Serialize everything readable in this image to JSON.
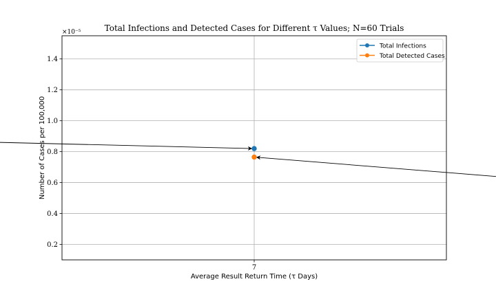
{
  "chart_data": {
    "type": "scatter",
    "title": "Total Infections and Detected Cases for Different τ Values; N=60 Trials",
    "xlabel": "Average Result Return Time (τ Days)",
    "ylabel": "Number of Cases per 100,000",
    "y_exponent_label": "×10⁻⁵",
    "x_categories": [
      "7"
    ],
    "x_ticks": [
      {
        "value": 7,
        "label": "7"
      }
    ],
    "y_ticks": [
      {
        "value": 0.2,
        "label": "0.2"
      },
      {
        "value": 0.4,
        "label": "0.4"
      },
      {
        "value": 0.6,
        "label": "0.6"
      },
      {
        "value": 0.8,
        "label": "0.8"
      },
      {
        "value": 1.0,
        "label": "1.0"
      },
      {
        "value": 1.2,
        "label": "1.2"
      },
      {
        "value": 1.4,
        "label": "1.4"
      }
    ],
    "xlim": [
      6,
      8
    ],
    "ylim": [
      0.1,
      1.55
    ],
    "grid": true,
    "legend_position": "top-right",
    "series": [
      {
        "name": "Total Infections",
        "color": "#1f77b4",
        "points": [
          {
            "x": 7,
            "y": 0.82
          }
        ]
      },
      {
        "name": "Total Detected Cases",
        "color": "#ff7f0e",
        "points": [
          {
            "x": 7,
            "y": 0.765
          }
        ]
      }
    ],
    "annotations": [
      {
        "name": "infections-arrow",
        "target_series": 0
      },
      {
        "name": "detected-arrow",
        "target_series": 1
      }
    ]
  }
}
